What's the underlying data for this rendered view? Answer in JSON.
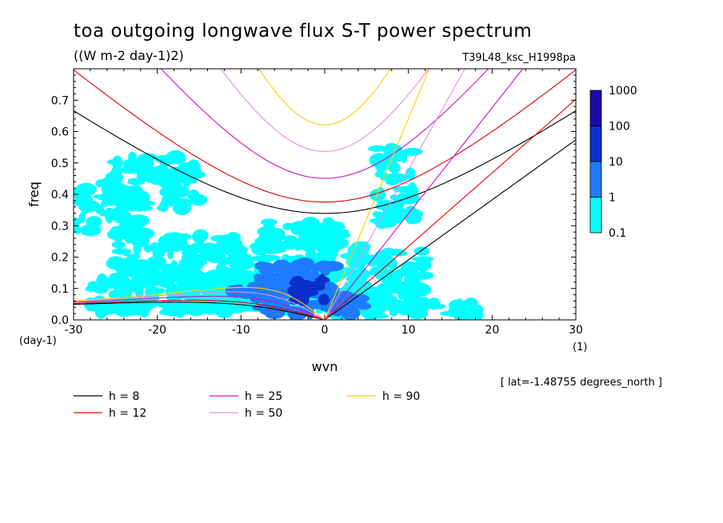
{
  "chart_data": {
    "type": "heatmap",
    "title": "toa outgoing longwave flux S-T power spectrum",
    "units_label": "((W m-2 day-1)2)",
    "run_label": "T39L48_ksc_H1998pa",
    "xlabel": "wvn",
    "ylabel": "freq",
    "x_units": "(1)",
    "y_units": "(day-1)",
    "lat_note": "[ lat=-1.48755 degrees_north ]",
    "xlim": [
      -30,
      30
    ],
    "ylim": [
      0,
      0.8
    ],
    "xticks": [
      "-30",
      "-20",
      "-10",
      "0",
      "10",
      "20",
      "30"
    ],
    "yticks": [
      "0.0",
      "0.1",
      "0.2",
      "0.3",
      "0.4",
      "0.5",
      "0.6",
      "0.7"
    ],
    "colorbar": {
      "levels": [
        "0.1",
        "1",
        "10",
        "100",
        "1000"
      ],
      "colors": [
        "#00ffff",
        "#1e7bff",
        "#0a2fcc",
        "#1a0aa8"
      ]
    },
    "dispersion_curves": [
      {
        "label": "h = 8",
        "h": 8,
        "color": "#000000"
      },
      {
        "label": "h = 12",
        "h": 12,
        "color": "#e00000"
      },
      {
        "label": "h = 25",
        "h": 25,
        "color": "#d010c8"
      },
      {
        "label": "h = 50",
        "h": 50,
        "color": "#e48ee4"
      },
      {
        "label": "h = 90",
        "h": 90,
        "color": "#ffcc00"
      }
    ],
    "heat_regions": [
      {
        "level": 1,
        "x": [
          -29,
          -5
        ],
        "y": [
          0.02,
          0.07
        ]
      },
      {
        "level": 1,
        "x": [
          -28,
          -8
        ],
        "y": [
          0.03,
          0.14
        ]
      },
      {
        "level": 1,
        "x": [
          -25,
          -10
        ],
        "y": [
          0.1,
          0.28
        ]
      },
      {
        "level": 1,
        "x": [
          -30,
          -22
        ],
        "y": [
          0.28,
          0.42
        ]
      },
      {
        "level": 1,
        "x": [
          -27,
          -15
        ],
        "y": [
          0.35,
          0.52
        ]
      },
      {
        "level": 1,
        "x": [
          -12,
          5
        ],
        "y": [
          0.03,
          0.25
        ]
      },
      {
        "level": 1,
        "x": [
          -8,
          2
        ],
        "y": [
          0.22,
          0.32
        ]
      },
      {
        "level": 1,
        "x": [
          1,
          19
        ],
        "y": [
          0.01,
          0.06
        ]
      },
      {
        "level": 1,
        "x": [
          3,
          12
        ],
        "y": [
          0.05,
          0.22
        ]
      },
      {
        "level": 1,
        "x": [
          6,
          11
        ],
        "y": [
          0.3,
          0.55
        ]
      },
      {
        "level": 2,
        "x": [
          -8,
          1
        ],
        "y": [
          0.02,
          0.18
        ]
      },
      {
        "level": 2,
        "x": [
          -11,
          -6
        ],
        "y": [
          0.05,
          0.11
        ]
      },
      {
        "level": 2,
        "x": [
          1,
          5
        ],
        "y": [
          0.02,
          0.08
        ]
      },
      {
        "level": 3,
        "x": [
          -4,
          0
        ],
        "y": [
          0.06,
          0.13
        ]
      }
    ]
  }
}
